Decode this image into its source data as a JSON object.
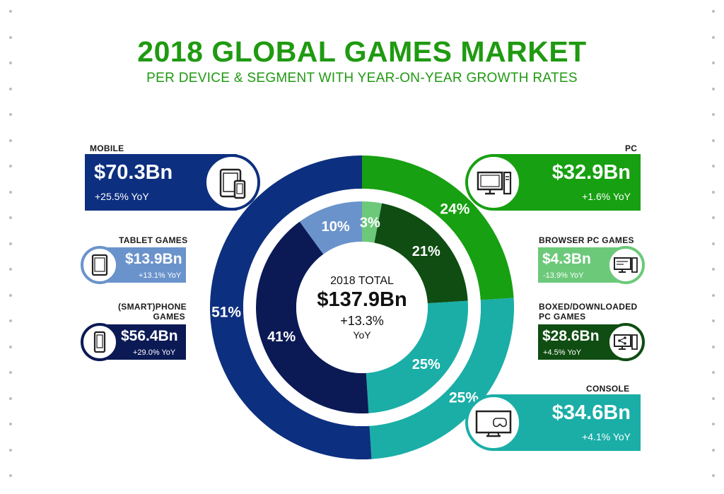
{
  "title": "2018 GLOBAL GAMES MARKET",
  "subtitle": "PER DEVICE & SEGMENT WITH YEAR-ON-YEAR GROWTH RATES",
  "center": {
    "label": "2018 TOTAL",
    "value": "$137.9Bn",
    "growth": "+13.3%",
    "growth_unit": "YoY"
  },
  "colors": {
    "mobile": "#0d2f7f",
    "pc": "#17a011",
    "console": "#1aaea7",
    "tablet": "#6a93cb",
    "smartphone": "#0b1a55",
    "browser": "#6cc97a",
    "boxed": "#0f4d12"
  },
  "segments": {
    "mobile": {
      "heading": "MOBILE",
      "value": "$70.3Bn",
      "yoy": "+25.5% YoY",
      "icon": "tablet-phone-icon"
    },
    "pc": {
      "heading": "PC",
      "value": "$32.9Bn",
      "yoy": "+1.6% YoY",
      "icon": "desktop-computer-icon"
    },
    "console": {
      "heading": "CONSOLE",
      "value": "$34.6Bn",
      "yoy": "+4.1% YoY",
      "icon": "tv-gamepad-icon"
    },
    "tablet": {
      "heading": "TABLET GAMES",
      "value": "$13.9Bn",
      "yoy": "+13.1% YoY",
      "icon": "tablet-icon"
    },
    "smartphone": {
      "heading_line1": "(SMART)PHONE",
      "heading_line2": "GAMES",
      "value": "$56.4Bn",
      "yoy": "+29.0% YoY",
      "icon": "phone-icon"
    },
    "browser": {
      "heading": "BROWSER PC GAMES",
      "value": "$4.3Bn",
      "yoy": "-13.9% YoY",
      "icon": "browser-computer-icon"
    },
    "boxed": {
      "heading_line1": "BOXED/DOWNLOADED",
      "heading_line2": "PC GAMES",
      "value": "$28.6Bn",
      "yoy": "+4.5% YoY",
      "icon": "download-computer-icon"
    }
  },
  "chart_data": {
    "type": "pie",
    "title": "2018 GLOBAL GAMES MARKET",
    "total": "$137.9Bn",
    "outer_ring": [
      {
        "name": "PC",
        "percent": 24,
        "label": "24%",
        "color_key": "pc"
      },
      {
        "name": "CONSOLE",
        "percent": 25,
        "label": "25%",
        "color_key": "console"
      },
      {
        "name": "MOBILE",
        "percent": 51,
        "label": "51%",
        "color_key": "mobile"
      }
    ],
    "inner_ring": [
      {
        "name": "BROWSER PC GAMES",
        "percent": 3,
        "label": "3%",
        "color_key": "browser"
      },
      {
        "name": "BOXED/DOWNLOADED PC GAMES",
        "percent": 21,
        "label": "21%",
        "color_key": "boxed"
      },
      {
        "name": "CONSOLE",
        "percent": 25,
        "label": "25%",
        "color_key": "console"
      },
      {
        "name": "(SMART)PHONE GAMES",
        "percent": 41,
        "label": "41%",
        "color_key": "smartphone"
      },
      {
        "name": "TABLET GAMES",
        "percent": 10,
        "label": "10%",
        "color_key": "tablet"
      }
    ]
  }
}
